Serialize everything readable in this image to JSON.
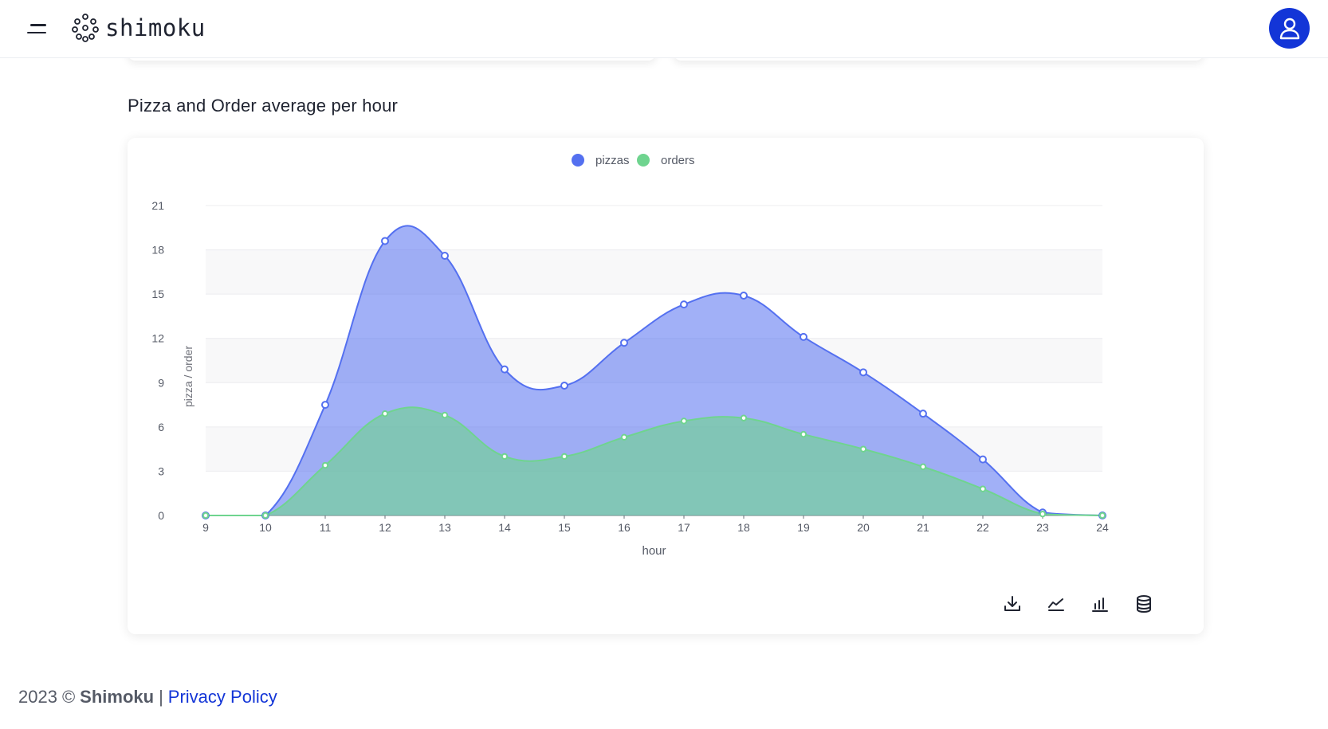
{
  "header": {
    "brand_name": "shimoku",
    "icons": {
      "menu": "menu-icon",
      "logo": "dots-logo-icon",
      "user": "user-icon"
    },
    "accent_color": "#1335d7"
  },
  "section": {
    "title": "Pizza and Order average per hour"
  },
  "chart_toolbar": {
    "icons": [
      "download-icon",
      "line-chart-icon",
      "bar-chart-icon",
      "database-icon"
    ]
  },
  "chart_data": {
    "type": "area",
    "title": "",
    "xlabel": "hour",
    "ylabel": "pizza / order",
    "x": [
      9,
      10,
      11,
      12,
      13,
      14,
      15,
      16,
      17,
      18,
      19,
      20,
      21,
      22,
      23,
      24
    ],
    "ylim": [
      0,
      21
    ],
    "yticks": [
      0,
      3,
      6,
      9,
      12,
      15,
      18,
      21
    ],
    "legend_position": "top-center",
    "grid": true,
    "series": [
      {
        "name": "pizzas",
        "color": "#5470f0",
        "values": [
          0,
          0,
          7.5,
          18.6,
          17.6,
          9.9,
          8.8,
          11.7,
          14.3,
          14.9,
          12.1,
          9.7,
          6.9,
          3.8,
          0.2,
          0
        ]
      },
      {
        "name": "orders",
        "color": "#6fd48f",
        "values": [
          0,
          0,
          3.4,
          6.9,
          6.8,
          4.0,
          4.0,
          5.3,
          6.4,
          6.6,
          5.5,
          4.5,
          3.3,
          1.8,
          0.1,
          0
        ]
      }
    ]
  },
  "footer": {
    "year": "2023",
    "copyright_symbol": "©",
    "company": "Shimoku",
    "separator": "|",
    "privacy_link": "Privacy Policy"
  }
}
